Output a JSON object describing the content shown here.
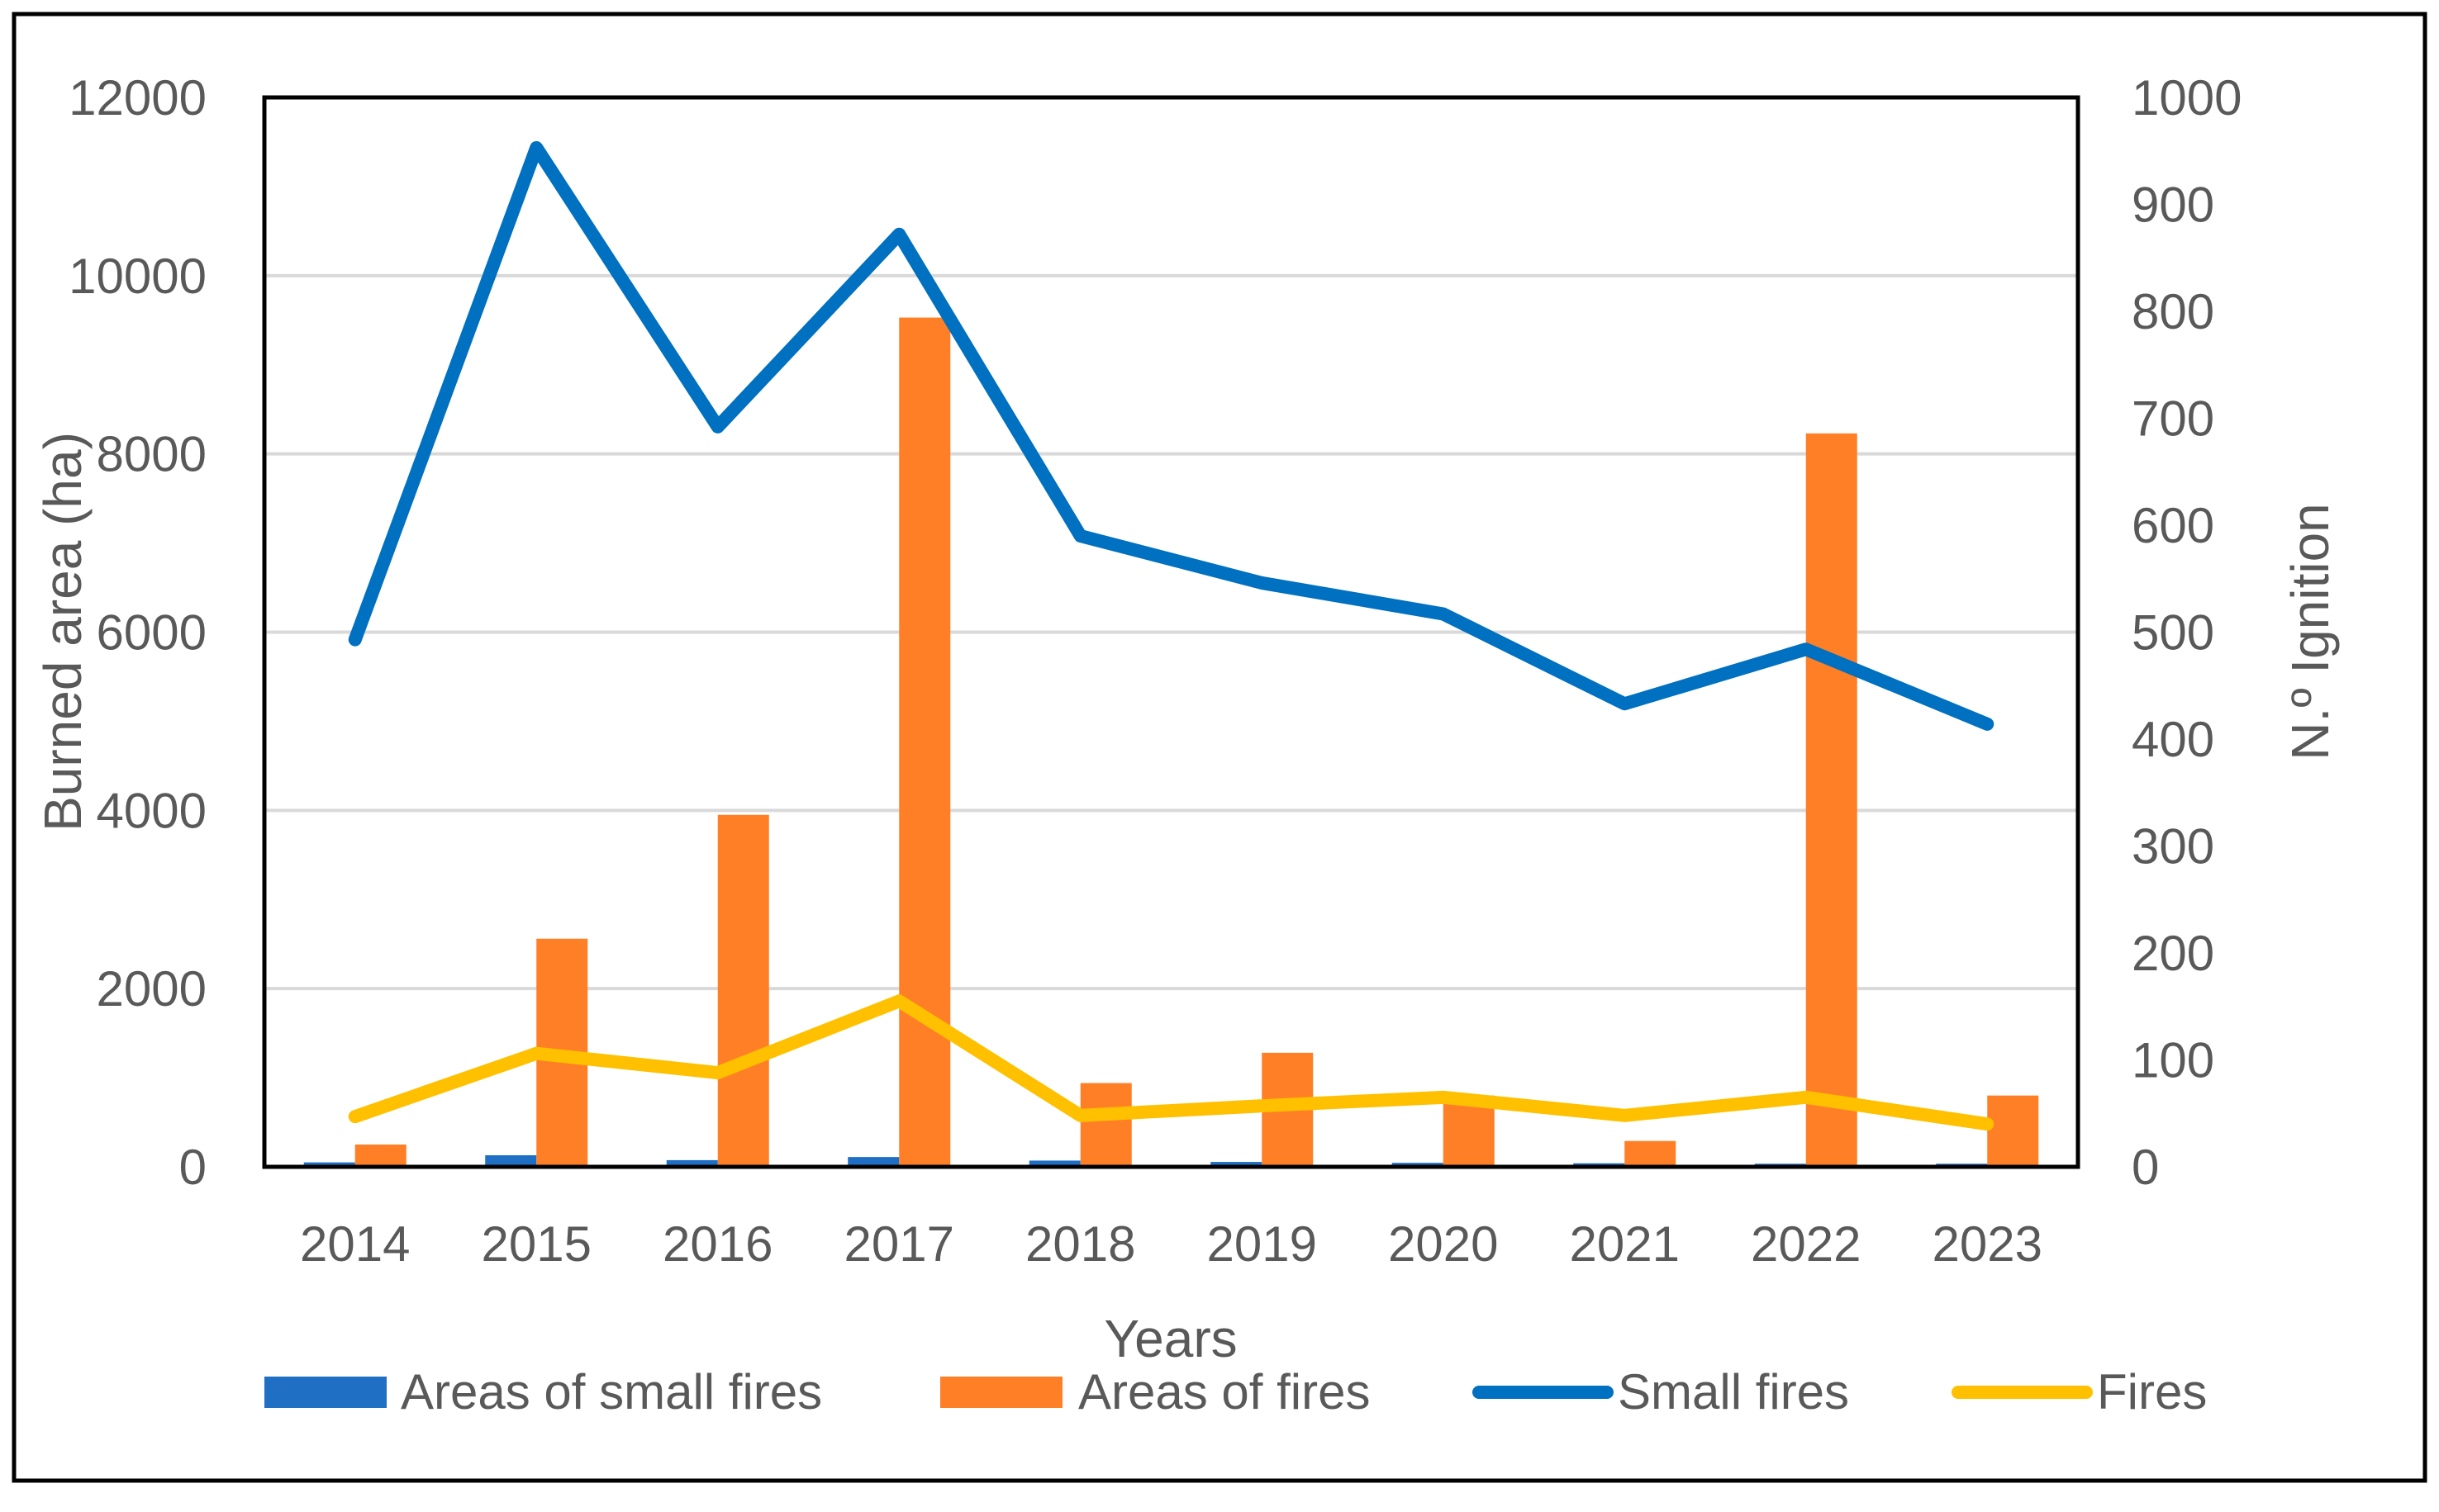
{
  "chart_data": {
    "type": "bar",
    "title": "",
    "xlabel": "Years",
    "ylabel": "Burned area (ha)",
    "y2label": "N.º Ignition",
    "categories": [
      "2014",
      "2015",
      "2016",
      "2017",
      "2018",
      "2019",
      "2020",
      "2021",
      "2022",
      "2023"
    ],
    "ylim": [
      0,
      12000
    ],
    "y2lim": [
      0,
      1000
    ],
    "yticks": [
      "0",
      "2000",
      "4000",
      "6000",
      "8000",
      "10000",
      "12000"
    ],
    "y2ticks": [
      "0",
      "100",
      "200",
      "300",
      "400",
      "500",
      "600",
      "700",
      "800",
      "900",
      "1000"
    ],
    "grid": true,
    "legend_position": "bottom",
    "series": [
      {
        "name": "Areas of small fires",
        "type": "bar",
        "axis": "left",
        "color": "#1f6fc5",
        "values": [
          50,
          130,
          75,
          110,
          70,
          55,
          45,
          40,
          35,
          35
        ]
      },
      {
        "name": "Areas of fires",
        "type": "bar",
        "axis": "left",
        "color": "#ff7f27",
        "values": [
          250,
          2560,
          3950,
          9530,
          940,
          1280,
          800,
          290,
          8230,
          800
        ]
      },
      {
        "name": "Small fires",
        "type": "line",
        "axis": "right",
        "color": "#0070c0",
        "values": [
          493,
          953,
          692,
          872,
          590,
          546,
          517,
          433,
          484,
          414
        ]
      },
      {
        "name": "Fires",
        "type": "line",
        "axis": "right",
        "color": "#ffc000",
        "values": [
          47,
          106,
          88,
          155,
          48,
          57,
          65,
          48,
          65,
          40
        ]
      }
    ]
  }
}
